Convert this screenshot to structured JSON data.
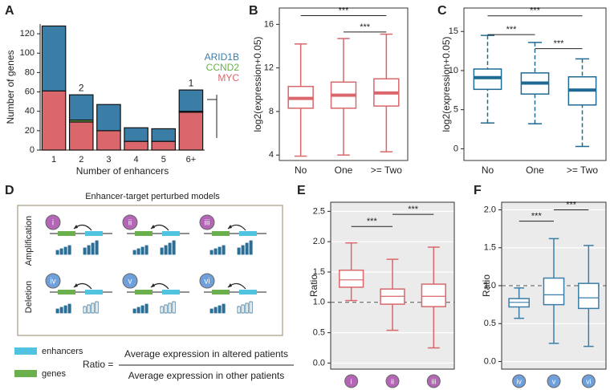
{
  "chart_data": [
    {
      "panel": "A",
      "type": "stacked_bar",
      "ylabel": "Number of genes",
      "xlabel": "Number of enhancers",
      "categories": [
        "1",
        "2",
        "3",
        "4",
        "5",
        "6+"
      ],
      "series": [
        {
          "name": "MYC",
          "color": "#d9676b",
          "values": [
            61,
            29,
            20,
            9,
            9,
            39
          ]
        },
        {
          "name": "CCND2",
          "color": "#6ab04c",
          "values": [
            0,
            2,
            0,
            0,
            0,
            1
          ],
          "value_labels": [
            null,
            "2",
            null,
            null,
            null,
            "1"
          ]
        },
        {
          "name": "ARID1B",
          "color": "#3a7ea8",
          "values": [
            67,
            26,
            27,
            14,
            13,
            22
          ]
        }
      ],
      "ylim": [
        0,
        130
      ],
      "yticks": [
        0,
        20,
        40,
        60,
        80,
        100,
        120
      ]
    },
    {
      "panel": "B",
      "type": "box",
      "ylabel": "log2(expression+0.05)",
      "color": "#d9676b",
      "frame": true,
      "median_width": 4,
      "categories": [
        "No",
        "One",
        ">= Two"
      ],
      "boxes": [
        {
          "min": 3.9,
          "q1": 8.3,
          "median": 9.2,
          "q3": 10.3,
          "max": 14.2
        },
        {
          "min": 4.0,
          "q1": 8.3,
          "median": 9.5,
          "q3": 10.7,
          "max": 14.7
        },
        {
          "min": 4.3,
          "q1": 8.5,
          "median": 9.7,
          "q3": 11.0,
          "max": 15.1
        }
      ],
      "annotations": [
        {
          "from": 0,
          "to": 2,
          "y": 16.8,
          "text": "***"
        },
        {
          "from": 1,
          "to": 2,
          "y": 15.3,
          "text": "***"
        }
      ],
      "ylim": [
        3.5,
        17.5
      ],
      "yticks": [
        4,
        8,
        12,
        16
      ]
    },
    {
      "panel": "C",
      "type": "box",
      "ylabel": "log2(expression+0.05)",
      "color": "#1f6a94",
      "frame": true,
      "median_width": 4,
      "whisker_dashed": true,
      "categories": [
        "No",
        "One",
        ">= Two"
      ],
      "boxes": [
        {
          "min": 3.3,
          "q1": 7.6,
          "median": 9.1,
          "q3": 10.2,
          "max": 14.5
        },
        {
          "min": 3.2,
          "q1": 7.0,
          "median": 8.4,
          "q3": 9.7,
          "max": 13.6
        },
        {
          "min": 0.3,
          "q1": 5.6,
          "median": 7.5,
          "q3": 9.2,
          "max": 11.5
        }
      ],
      "annotations": [
        {
          "from": 0,
          "to": 2,
          "y": 17.0,
          "text": "***"
        },
        {
          "from": 0,
          "to": 1,
          "y": 14.6,
          "text": "***"
        },
        {
          "from": 1,
          "to": 2,
          "y": 12.8,
          "text": "***"
        }
      ],
      "ylim": [
        -1.5,
        18
      ],
      "yticks": [
        0,
        5,
        10,
        15
      ]
    },
    {
      "panel": "E",
      "type": "box",
      "ylabel": "Ratio",
      "color": "#d9676b",
      "frame": true,
      "median_width": 1.2,
      "background": "#ebebeb",
      "grid": true,
      "hline": 1,
      "category_circle_color": "#b565b5",
      "categories": [
        "i",
        "ii",
        "iii"
      ],
      "boxes": [
        {
          "min": 1.03,
          "q1": 1.25,
          "median": 1.37,
          "q3": 1.53,
          "max": 1.98
        },
        {
          "min": 0.54,
          "q1": 0.97,
          "median": 1.1,
          "q3": 1.22,
          "max": 1.71
        },
        {
          "min": 0.25,
          "q1": 0.93,
          "median": 1.1,
          "q3": 1.3,
          "max": 1.91
        }
      ],
      "annotations": [
        {
          "from": 0,
          "to": 1,
          "y": 2.25,
          "text": "***"
        },
        {
          "from": 1,
          "to": 2,
          "y": 2.45,
          "text": "***"
        }
      ],
      "ylim": [
        -0.1,
        2.65
      ],
      "yticks": [
        {
          "value": 0,
          "label": "0.0"
        },
        0.5,
        {
          "value": 1,
          "label": "1.0"
        },
        1.5,
        {
          "value": 2,
          "label": "2.0"
        },
        2.5
      ]
    },
    {
      "panel": "F",
      "type": "box",
      "ylabel": "Ratio",
      "color": "#3a7ea8",
      "frame": true,
      "median_width": 1.2,
      "background": "#ebebeb",
      "grid": true,
      "hline": 1,
      "category_circle_color": "#6fa0dc",
      "categories": [
        "iv",
        "v",
        "vi"
      ],
      "boxes": [
        {
          "min": 0.57,
          "q1": 0.72,
          "median": 0.78,
          "q3": 0.83,
          "max": 0.97
        },
        {
          "min": 0.24,
          "q1": 0.75,
          "median": 0.88,
          "q3": 1.1,
          "max": 1.62
        },
        {
          "min": 0.2,
          "q1": 0.7,
          "median": 0.84,
          "q3": 1.03,
          "max": 1.53
        }
      ],
      "annotations": [
        {
          "from": 0,
          "to": 1,
          "y": 1.85,
          "text": "***"
        },
        {
          "from": 1,
          "to": 2,
          "y": 2.0,
          "text": "***"
        }
      ],
      "ylim": [
        -0.1,
        2.1
      ],
      "yticks": [
        {
          "value": 0,
          "label": "0.0"
        },
        0.5,
        {
          "value": 1,
          "label": "1.0"
        },
        1.5,
        {
          "value": 2,
          "label": "2.0"
        }
      ]
    }
  ],
  "diagram": {
    "panel": "D",
    "title": "Enhancer-target perturbed models",
    "rows": [
      "Amplification",
      "Deletion"
    ],
    "models": [
      "i",
      "ii",
      "iii",
      "iv",
      "v",
      "vi"
    ],
    "legend": [
      "enhancers",
      "genes"
    ],
    "ratio": "Ratio =",
    "numerator": "Average expression in altered patients",
    "denominator": "Average expression in other patients"
  }
}
